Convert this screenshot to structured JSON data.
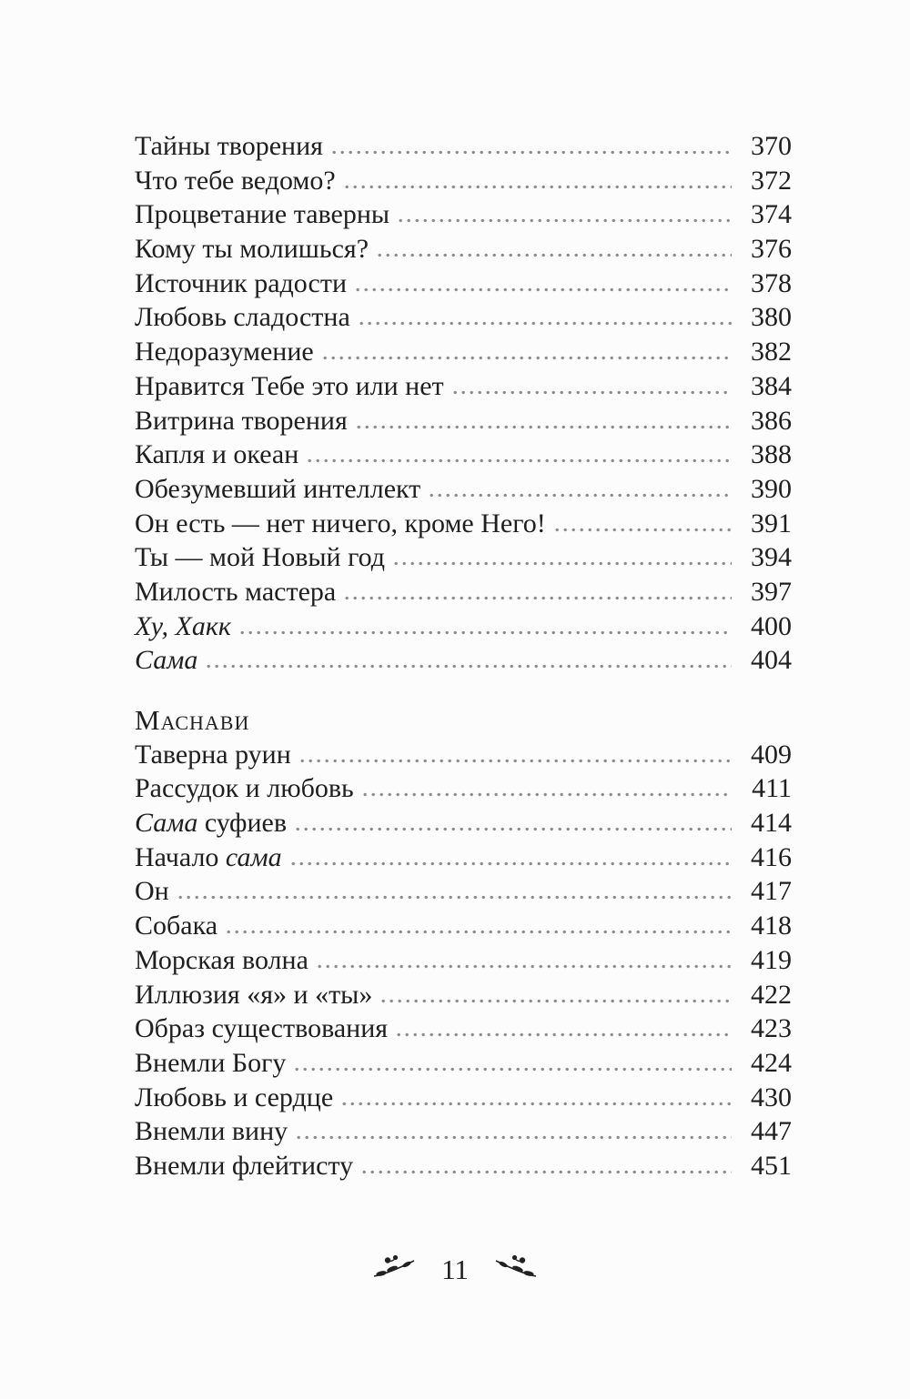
{
  "colors": {
    "text": "#1f1f1f",
    "leader_dots": "#8c8c8c",
    "background": "#fcfcfc"
  },
  "toc": {
    "sections": [
      {
        "header": "",
        "entries": [
          {
            "segments": [
              {
                "t": "Тайны творения",
                "i": false
              }
            ],
            "page": "370"
          },
          {
            "segments": [
              {
                "t": "Что тебе ведомо?",
                "i": false
              }
            ],
            "page": "372"
          },
          {
            "segments": [
              {
                "t": "Процветание таверны",
                "i": false
              }
            ],
            "page": "374"
          },
          {
            "segments": [
              {
                "t": "Кому ты молишься?",
                "i": false
              }
            ],
            "page": "376"
          },
          {
            "segments": [
              {
                "t": "Источник радости",
                "i": false
              }
            ],
            "page": "378"
          },
          {
            "segments": [
              {
                "t": "Любовь сладостна",
                "i": false
              }
            ],
            "page": "380"
          },
          {
            "segments": [
              {
                "t": "Недоразумение",
                "i": false
              }
            ],
            "page": "382"
          },
          {
            "segments": [
              {
                "t": "Нравится Тебе это или нет",
                "i": false
              }
            ],
            "page": "384"
          },
          {
            "segments": [
              {
                "t": "Витрина творения",
                "i": false
              }
            ],
            "page": "386"
          },
          {
            "segments": [
              {
                "t": "Капля и океан",
                "i": false
              }
            ],
            "page": "388"
          },
          {
            "segments": [
              {
                "t": "Обезумевший интеллект",
                "i": false
              }
            ],
            "page": "390"
          },
          {
            "segments": [
              {
                "t": "Он есть — нет ничего, кроме Него!",
                "i": false
              }
            ],
            "page": "391"
          },
          {
            "segments": [
              {
                "t": "Ты — мой Новый год",
                "i": false
              }
            ],
            "page": "394"
          },
          {
            "segments": [
              {
                "t": "Милость мастера",
                "i": false
              }
            ],
            "page": "397"
          },
          {
            "segments": [
              {
                "t": "Ху, Хакк",
                "i": true
              }
            ],
            "page": "400"
          },
          {
            "segments": [
              {
                "t": "Сама",
                "i": true
              }
            ],
            "page": "404"
          }
        ]
      },
      {
        "header": "Маснави",
        "entries": [
          {
            "segments": [
              {
                "t": "Таверна руин",
                "i": false
              }
            ],
            "page": "409"
          },
          {
            "segments": [
              {
                "t": "Рассудок и любовь",
                "i": false
              }
            ],
            "page": "411"
          },
          {
            "segments": [
              {
                "t": "Сама",
                "i": true
              },
              {
                "t": " суфиев",
                "i": false
              }
            ],
            "page": "414"
          },
          {
            "segments": [
              {
                "t": "Начало ",
                "i": false
              },
              {
                "t": "сама",
                "i": true
              }
            ],
            "page": "416"
          },
          {
            "segments": [
              {
                "t": "Он",
                "i": false
              }
            ],
            "page": "417"
          },
          {
            "segments": [
              {
                "t": "Собака",
                "i": false
              }
            ],
            "page": "418"
          },
          {
            "segments": [
              {
                "t": "Морская волна",
                "i": false
              }
            ],
            "page": "419"
          },
          {
            "segments": [
              {
                "t": "Иллюзия «я» и «ты»",
                "i": false
              }
            ],
            "page": "422"
          },
          {
            "segments": [
              {
                "t": "Образ существования",
                "i": false
              }
            ],
            "page": "423"
          },
          {
            "segments": [
              {
                "t": "Внемли Богу",
                "i": false
              }
            ],
            "page": "424"
          },
          {
            "segments": [
              {
                "t": "Любовь и сердце",
                "i": false
              }
            ],
            "page": "430"
          },
          {
            "segments": [
              {
                "t": "Внемли вину",
                "i": false
              }
            ],
            "page": "447"
          },
          {
            "segments": [
              {
                "t": "Внемли флейтисту",
                "i": false
              }
            ],
            "page": "451"
          }
        ]
      }
    ]
  },
  "footer": {
    "page_number": "11",
    "left_ornament": "floral-sprig",
    "right_ornament": "floral-sprig"
  }
}
